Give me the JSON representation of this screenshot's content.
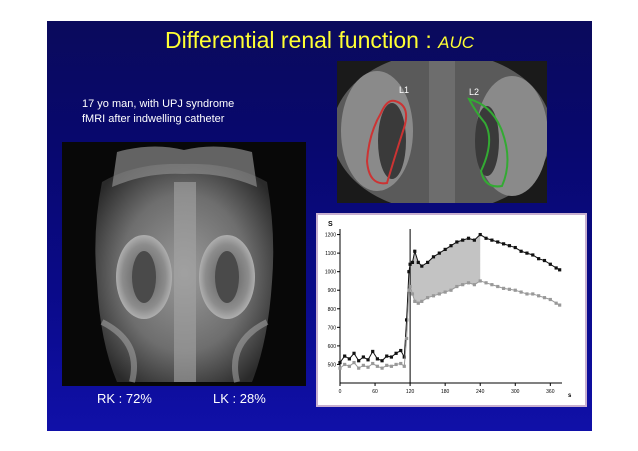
{
  "slide": {
    "title": "Differential renal function : ",
    "title_em": "AUC",
    "patient_line1": "17 yo man, with UPJ syndrome",
    "patient_line2": "fMRI after indwelling catheter",
    "rk_label": "RK : 72%",
    "lk_label": "LK : 28%",
    "roi_left": "L1",
    "roi_right": "L2"
  },
  "colors": {
    "title": "#ffff33",
    "roi_left": "#cc3333",
    "roi_right": "#33aa33",
    "slide_bg": "#0a0a70"
  },
  "chart_data": {
    "type": "scatter",
    "ylabel": "S",
    "xlabel": "s",
    "xlim": [
      0,
      380
    ],
    "ylim": [
      400,
      1230
    ],
    "xticks": [
      "0",
      "60",
      "120",
      "180",
      "240",
      "300",
      "360"
    ],
    "yticks": [
      "500",
      "600",
      "700",
      "800",
      "900",
      "1000",
      "1100",
      "1200"
    ],
    "bolus_time": 120,
    "auc_shaded_range": [
      120,
      240
    ],
    "series": [
      {
        "name": "",
        "color": "#111111",
        "x": [
          0,
          8,
          16,
          24,
          32,
          40,
          48,
          56,
          64,
          72,
          80,
          88,
          96,
          104,
          110,
          114,
          118,
          120,
          124,
          128,
          134,
          140,
          150,
          160,
          170,
          180,
          190,
          200,
          210,
          220,
          230,
          240,
          250,
          260,
          270,
          280,
          290,
          300,
          310,
          320,
          330,
          340,
          350,
          360,
          370,
          376
        ],
        "y": [
          510,
          545,
          530,
          560,
          520,
          540,
          525,
          570,
          530,
          520,
          545,
          540,
          560,
          575,
          540,
          740,
          1000,
          1040,
          1050,
          1110,
          1050,
          1030,
          1050,
          1080,
          1100,
          1120,
          1140,
          1160,
          1170,
          1180,
          1170,
          1200,
          1180,
          1170,
          1160,
          1150,
          1140,
          1130,
          1110,
          1100,
          1090,
          1070,
          1060,
          1040,
          1020,
          1010
        ]
      },
      {
        "name": "",
        "color": "#999999",
        "x": [
          0,
          8,
          16,
          24,
          32,
          40,
          48,
          56,
          64,
          72,
          80,
          88,
          96,
          104,
          110,
          114,
          118,
          120,
          124,
          128,
          134,
          140,
          150,
          160,
          170,
          180,
          190,
          200,
          210,
          220,
          230,
          240,
          250,
          260,
          270,
          280,
          290,
          300,
          310,
          320,
          330,
          340,
          350,
          360,
          370,
          376
        ],
        "y": [
          480,
          500,
          490,
          510,
          480,
          495,
          485,
          505,
          490,
          480,
          495,
          490,
          500,
          505,
          490,
          640,
          900,
          920,
          880,
          840,
          830,
          840,
          860,
          870,
          880,
          890,
          900,
          920,
          930,
          940,
          930,
          950,
          940,
          930,
          920,
          910,
          905,
          900,
          890,
          880,
          880,
          870,
          860,
          850,
          830,
          820
        ]
      }
    ]
  }
}
